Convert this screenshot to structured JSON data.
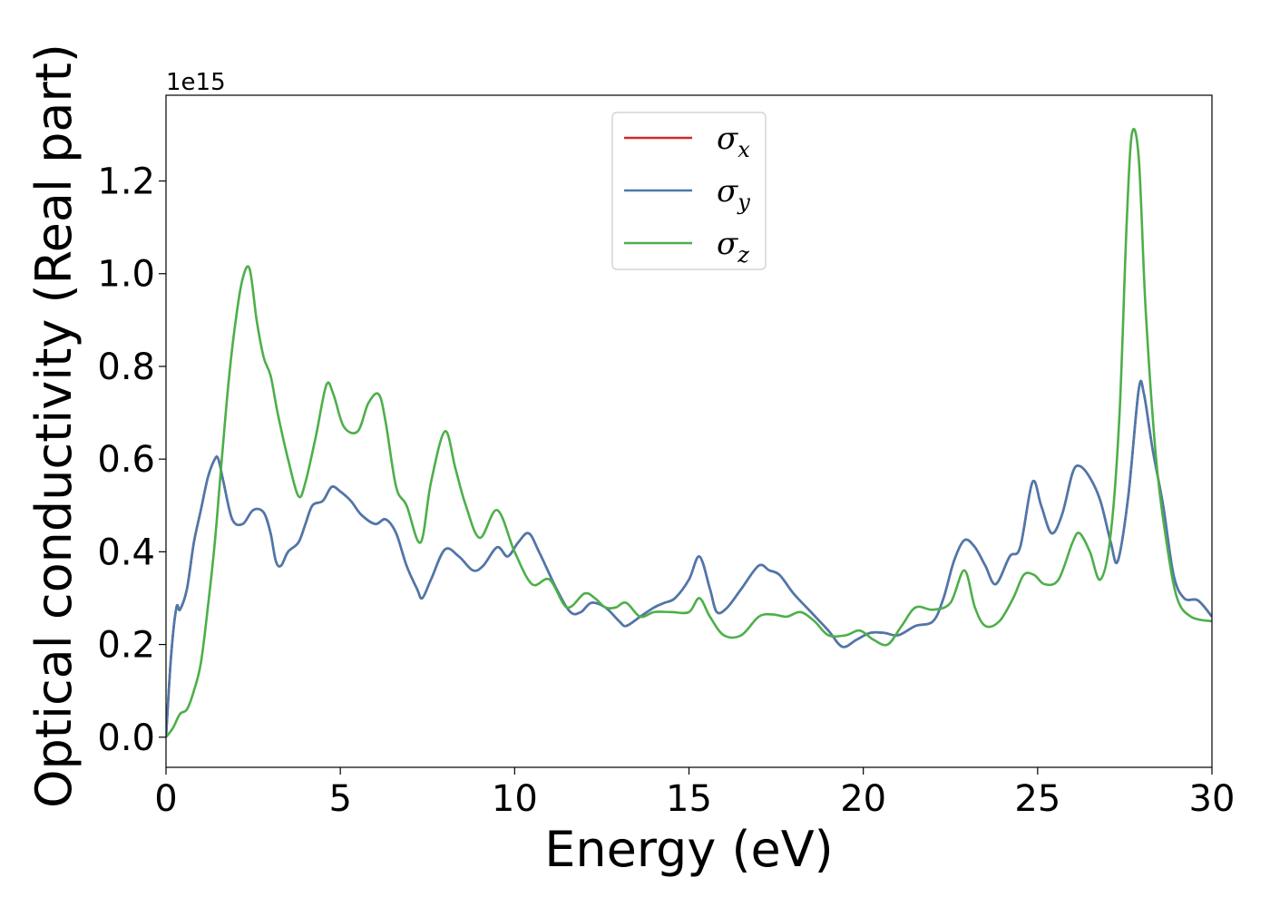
{
  "chart_data": {
    "type": "line",
    "xlabel": "Energy (eV)",
    "ylabel": "Optical conductivity (Real part)",
    "y_offset_text": "1e15",
    "xlim": [
      0,
      30
    ],
    "ylim": [
      -0.065,
      1.385
    ],
    "x_ticks": [
      0,
      5,
      10,
      15,
      20,
      25,
      30
    ],
    "x_tick_labels": [
      "0",
      "5",
      "10",
      "15",
      "20",
      "25",
      "30"
    ],
    "y_ticks": [
      0.0,
      0.2,
      0.4,
      0.6,
      0.8,
      1.0,
      1.2
    ],
    "y_tick_labels": [
      "0.0",
      "0.2",
      "0.4",
      "0.6",
      "0.8",
      "1.0",
      "1.2"
    ],
    "grid": false,
    "legend_position": "top-center",
    "series": [
      {
        "name": "σ",
        "sub": "x",
        "color": "#d62728",
        "x": [
          0,
          0.15,
          0.3,
          0.4,
          0.6,
          0.8,
          1.0,
          1.2,
          1.4,
          1.5,
          1.65,
          1.9,
          2.2,
          2.5,
          2.8,
          3.0,
          3.15,
          3.3,
          3.5,
          3.8,
          4.0,
          4.2,
          4.5,
          4.75,
          5.0,
          5.3,
          5.6,
          6.0,
          6.3,
          6.6,
          6.9,
          7.2,
          7.35,
          7.6,
          8.0,
          8.4,
          8.8,
          9.1,
          9.5,
          9.8,
          10.1,
          10.4,
          10.7,
          11.2,
          11.6,
          11.9,
          12.2,
          12.6,
          13.0,
          13.2,
          13.6,
          14.0,
          14.3,
          14.6,
          15.0,
          15.3,
          15.6,
          15.8,
          16.1,
          16.5,
          17.0,
          17.3,
          17.6,
          18.0,
          18.5,
          19.0,
          19.4,
          19.8,
          20.2,
          20.6,
          21.0,
          21.5,
          22.0,
          22.3,
          22.6,
          22.9,
          23.2,
          23.5,
          23.8,
          24.2,
          24.5,
          24.85,
          25.1,
          25.4,
          25.7,
          26.0,
          26.2,
          26.5,
          26.8,
          27.1,
          27.3,
          27.6,
          27.9,
          28.05,
          28.3,
          28.6,
          28.9,
          29.2,
          29.6,
          30.0
        ],
        "y": [
          0.0,
          0.18,
          0.28,
          0.275,
          0.32,
          0.42,
          0.49,
          0.56,
          0.6,
          0.6,
          0.55,
          0.47,
          0.46,
          0.49,
          0.485,
          0.44,
          0.38,
          0.37,
          0.4,
          0.42,
          0.46,
          0.5,
          0.51,
          0.54,
          0.53,
          0.51,
          0.48,
          0.46,
          0.47,
          0.44,
          0.37,
          0.32,
          0.3,
          0.34,
          0.405,
          0.39,
          0.36,
          0.37,
          0.41,
          0.39,
          0.42,
          0.44,
          0.4,
          0.32,
          0.27,
          0.27,
          0.29,
          0.28,
          0.25,
          0.24,
          0.26,
          0.28,
          0.29,
          0.3,
          0.34,
          0.39,
          0.32,
          0.27,
          0.28,
          0.32,
          0.37,
          0.36,
          0.35,
          0.31,
          0.27,
          0.23,
          0.195,
          0.21,
          0.225,
          0.225,
          0.22,
          0.24,
          0.25,
          0.3,
          0.38,
          0.425,
          0.41,
          0.37,
          0.33,
          0.39,
          0.41,
          0.55,
          0.5,
          0.44,
          0.48,
          0.57,
          0.585,
          0.56,
          0.51,
          0.42,
          0.38,
          0.52,
          0.75,
          0.74,
          0.62,
          0.5,
          0.35,
          0.3,
          0.295,
          0.26
        ]
      },
      {
        "name": "σ",
        "sub": "y",
        "color": "#4a79ae",
        "x": [
          0,
          0.15,
          0.3,
          0.4,
          0.6,
          0.8,
          1.0,
          1.2,
          1.4,
          1.5,
          1.65,
          1.9,
          2.2,
          2.5,
          2.8,
          3.0,
          3.15,
          3.3,
          3.5,
          3.8,
          4.0,
          4.2,
          4.5,
          4.75,
          5.0,
          5.3,
          5.6,
          6.0,
          6.3,
          6.6,
          6.9,
          7.2,
          7.35,
          7.6,
          8.0,
          8.4,
          8.8,
          9.1,
          9.5,
          9.8,
          10.1,
          10.4,
          10.7,
          11.2,
          11.6,
          11.9,
          12.2,
          12.6,
          13.0,
          13.2,
          13.6,
          14.0,
          14.3,
          14.6,
          15.0,
          15.3,
          15.6,
          15.8,
          16.1,
          16.5,
          17.0,
          17.3,
          17.6,
          18.0,
          18.5,
          19.0,
          19.4,
          19.8,
          20.2,
          20.6,
          21.0,
          21.5,
          22.0,
          22.3,
          22.6,
          22.9,
          23.2,
          23.5,
          23.8,
          24.2,
          24.5,
          24.85,
          25.1,
          25.4,
          25.7,
          26.0,
          26.2,
          26.5,
          26.8,
          27.1,
          27.3,
          27.6,
          27.9,
          28.05,
          28.3,
          28.6,
          28.9,
          29.2,
          29.6,
          30.0
        ],
        "y": [
          0.0,
          0.18,
          0.28,
          0.275,
          0.32,
          0.42,
          0.49,
          0.56,
          0.6,
          0.6,
          0.55,
          0.47,
          0.46,
          0.49,
          0.485,
          0.44,
          0.38,
          0.37,
          0.4,
          0.42,
          0.46,
          0.5,
          0.51,
          0.54,
          0.53,
          0.51,
          0.48,
          0.46,
          0.47,
          0.44,
          0.37,
          0.32,
          0.3,
          0.34,
          0.405,
          0.39,
          0.36,
          0.37,
          0.41,
          0.39,
          0.42,
          0.44,
          0.4,
          0.32,
          0.27,
          0.27,
          0.29,
          0.28,
          0.25,
          0.24,
          0.26,
          0.28,
          0.29,
          0.3,
          0.34,
          0.39,
          0.32,
          0.27,
          0.28,
          0.32,
          0.37,
          0.36,
          0.35,
          0.31,
          0.27,
          0.23,
          0.195,
          0.21,
          0.225,
          0.225,
          0.22,
          0.24,
          0.25,
          0.3,
          0.38,
          0.425,
          0.41,
          0.37,
          0.33,
          0.39,
          0.41,
          0.55,
          0.5,
          0.44,
          0.48,
          0.57,
          0.585,
          0.56,
          0.51,
          0.42,
          0.38,
          0.52,
          0.75,
          0.74,
          0.62,
          0.5,
          0.35,
          0.3,
          0.295,
          0.26
        ]
      },
      {
        "name": "σ",
        "sub": "z",
        "color": "#4daf4a",
        "x": [
          0,
          0.2,
          0.4,
          0.6,
          0.8,
          1.0,
          1.2,
          1.4,
          1.6,
          1.8,
          2.0,
          2.2,
          2.4,
          2.6,
          2.8,
          3.0,
          3.2,
          3.5,
          3.8,
          4.0,
          4.3,
          4.6,
          4.8,
          5.1,
          5.5,
          5.8,
          6.1,
          6.3,
          6.6,
          6.9,
          7.3,
          7.6,
          8.0,
          8.3,
          8.6,
          9.0,
          9.5,
          10.0,
          10.5,
          11.0,
          11.5,
          12.0,
          12.3,
          12.6,
          12.9,
          13.2,
          13.6,
          14.0,
          14.5,
          15.0,
          15.3,
          15.6,
          16.0,
          16.5,
          17.0,
          17.4,
          17.8,
          18.2,
          18.6,
          19.0,
          19.5,
          19.9,
          20.3,
          20.7,
          21.1,
          21.5,
          22.0,
          22.5,
          22.9,
          23.2,
          23.5,
          23.9,
          24.3,
          24.6,
          24.9,
          25.2,
          25.6,
          26.0,
          26.2,
          26.5,
          26.8,
          27.1,
          27.35,
          27.55,
          27.7,
          27.9,
          28.1,
          28.4,
          28.7,
          29.0,
          29.4,
          30.0
        ],
        "y": [
          0.0,
          0.02,
          0.05,
          0.06,
          0.1,
          0.16,
          0.28,
          0.42,
          0.6,
          0.77,
          0.9,
          0.99,
          1.01,
          0.9,
          0.82,
          0.78,
          0.7,
          0.6,
          0.52,
          0.55,
          0.65,
          0.76,
          0.74,
          0.67,
          0.66,
          0.72,
          0.74,
          0.68,
          0.54,
          0.5,
          0.42,
          0.55,
          0.66,
          0.58,
          0.5,
          0.43,
          0.49,
          0.4,
          0.33,
          0.34,
          0.28,
          0.31,
          0.3,
          0.28,
          0.28,
          0.29,
          0.26,
          0.27,
          0.27,
          0.27,
          0.3,
          0.26,
          0.22,
          0.22,
          0.26,
          0.265,
          0.26,
          0.27,
          0.25,
          0.22,
          0.22,
          0.23,
          0.21,
          0.2,
          0.24,
          0.28,
          0.275,
          0.29,
          0.36,
          0.28,
          0.24,
          0.25,
          0.3,
          0.35,
          0.35,
          0.33,
          0.34,
          0.42,
          0.44,
          0.4,
          0.34,
          0.44,
          0.7,
          1.1,
          1.3,
          1.25,
          0.92,
          0.6,
          0.42,
          0.3,
          0.26,
          0.25
        ]
      }
    ]
  }
}
